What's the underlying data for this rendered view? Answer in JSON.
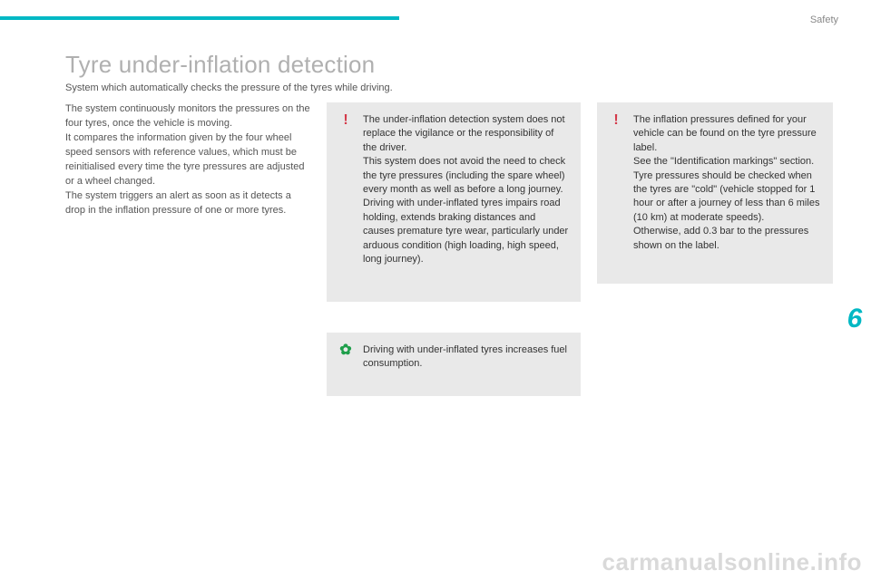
{
  "category": "Safety",
  "title": "Tyre under-inflation detection",
  "subtitle": "System which automatically checks the pressure of the tyres while driving.",
  "intro": "The system continuously monitors the pressures on the four tyres, once the vehicle is moving.\nIt compares the information given by the four wheel speed sensors with reference values, which must be reinitialised every time the tyre pressures are adjusted or a wheel changed.\nThe system triggers an alert as soon as it detects a drop in the inflation pressure of one or more tyres.",
  "warn1": "The under-inflation detection system does not replace the vigilance or the responsibility of the driver.\nThis system does not avoid the need to check the tyre pressures (including the spare wheel) every month as well as before a long journey.\nDriving with under-inflated tyres impairs road holding, extends braking distances and causes premature tyre wear, particularly under arduous condition (high loading, high speed, long journey).",
  "eco": "Driving with under-inflated tyres increases fuel consumption.",
  "warn2": "The inflation pressures defined for your vehicle can be found on the tyre pressure label.\nSee the \"Identification markings\" section.\nTyre pressures should be checked when the tyres are \"cold\" (vehicle stopped for 1 hour or after a journey of less than 6 miles (10 km) at moderate speeds).\nOtherwise, add 0.3 bar to the pressures shown on the label.",
  "chapter": "6",
  "watermark": "carmanualsonline.info",
  "colors": {
    "accent": "#00b8c4",
    "warn_icon": "#d43a4a",
    "eco_icon": "#1e9e4a",
    "box_bg": "#e9e9e9"
  }
}
